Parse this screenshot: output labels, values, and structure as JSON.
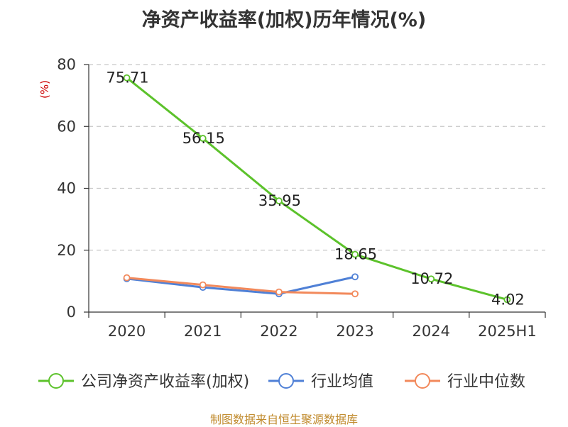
{
  "title": "净资产收益率(加权)历年情况(%)",
  "source": "制图数据来自恒生聚源数据库",
  "chart_data": {
    "type": "line",
    "title": "净资产收益率(加权)历年情况(%)",
    "ylabel": "(%)",
    "xlabel": "",
    "ylim": [
      0,
      80
    ],
    "yticks": [
      "0",
      "20",
      "40",
      "60",
      "80"
    ],
    "categories": [
      "2020",
      "2021",
      "2022",
      "2023",
      "2024",
      "2025H1"
    ],
    "grid": true,
    "legend_position": "bottom",
    "series": [
      {
        "name": "公司净资产收益率(加权)",
        "color": "#5cc22b",
        "values": [
          75.71,
          56.15,
          35.95,
          18.65,
          10.72,
          4.02
        ],
        "labels": [
          "75.71",
          "56.15",
          "35.95",
          "18.65",
          "10.72",
          "4.02"
        ]
      },
      {
        "name": "行业均值",
        "color": "#4f80d6",
        "values": [
          10.8,
          8.0,
          5.9,
          11.4,
          null,
          null
        ]
      },
      {
        "name": "行业中位数",
        "color": "#f2895b",
        "values": [
          11.1,
          8.8,
          6.5,
          5.9,
          null,
          null
        ]
      }
    ]
  }
}
